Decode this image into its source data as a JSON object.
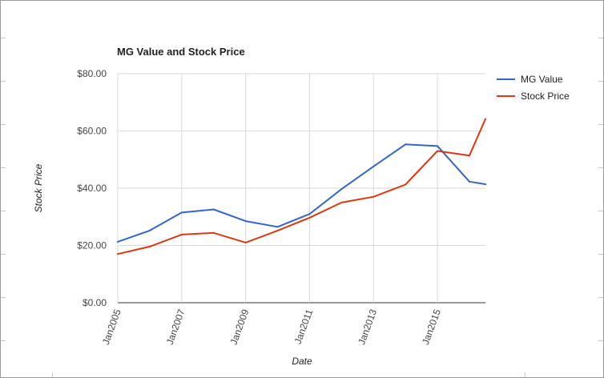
{
  "chart_data": {
    "type": "line",
    "title": "MG Value and Stock Price",
    "xlabel": "Date",
    "ylabel": "Stock Price",
    "x_ticks": [
      "Jan2005",
      "Jan2007",
      "Jan2009",
      "Jan2011",
      "Jan2013",
      "Jan2015"
    ],
    "y_ticks": [
      "$0.00",
      "$20.00",
      "$40.00",
      "$60.00",
      "$80.00"
    ],
    "ylim": [
      0,
      80
    ],
    "xlim": [
      "2005-01",
      "2016-07"
    ],
    "grid": true,
    "legend_position": "right",
    "x": [
      "2005-01",
      "2006-01",
      "2007-01",
      "2008-01",
      "2009-01",
      "2010-01",
      "2011-01",
      "2012-01",
      "2013-01",
      "2014-01",
      "2015-01",
      "2016-01",
      "2016-07"
    ],
    "series": [
      {
        "name": "MG Value",
        "color": "#3366cc",
        "values": [
          21.3,
          25.2,
          31.5,
          32.6,
          28.5,
          26.5,
          31.0,
          39.7,
          47.6,
          55.3,
          54.7,
          42.3,
          41.4
        ]
      },
      {
        "name": "Stock Price",
        "color": "#dc3912",
        "values": [
          17.0,
          19.6,
          23.8,
          24.4,
          21.0,
          25.2,
          29.7,
          35.0,
          37.0,
          41.3,
          53.0,
          51.4,
          64.2
        ]
      }
    ]
  }
}
